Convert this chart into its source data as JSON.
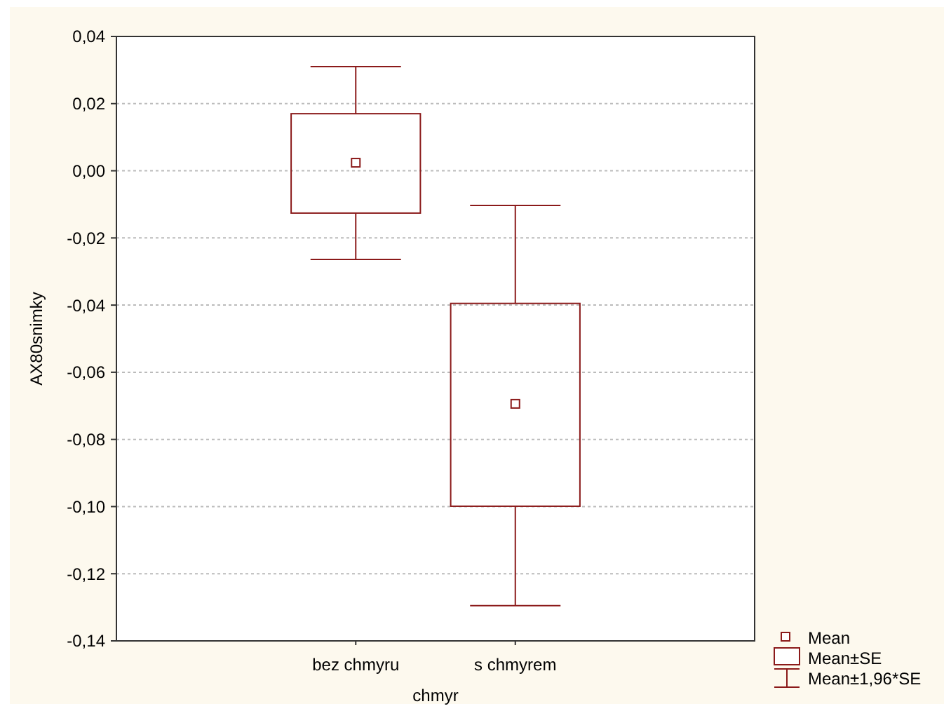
{
  "chart_data": {
    "type": "box",
    "xlabel": "chmyr",
    "ylabel": "AX80snimky",
    "categories": [
      "bez chmyru",
      "s chmyrem"
    ],
    "series": [
      {
        "color": "#8b1a1a",
        "boxes": [
          {
            "low": -0.0264,
            "q1": -0.0126,
            "median": 0.0024,
            "q3": 0.017,
            "high": 0.031
          },
          {
            "low": -0.1295,
            "q1": -0.0999,
            "median": -0.0694,
            "q3": -0.0395,
            "high": -0.0103
          }
        ]
      }
    ],
    "ylim": [
      -0.14,
      0.04
    ],
    "yticks": [
      {
        "value": -0.14,
        "label": "-0,14"
      },
      {
        "value": -0.12,
        "label": "-0,12"
      },
      {
        "value": -0.1,
        "label": "-0,10"
      },
      {
        "value": -0.08,
        "label": "-0,08"
      },
      {
        "value": -0.06,
        "label": "-0,06"
      },
      {
        "value": -0.04,
        "label": "-0,04"
      },
      {
        "value": -0.02,
        "label": "-0,02"
      },
      {
        "value": 0,
        "label": "0,00"
      },
      {
        "value": 0.02,
        "label": "0,02"
      },
      {
        "value": 0.04,
        "label": "0,04"
      }
    ],
    "grid": "y",
    "annotations": [
      "Mean",
      "Mean±SE",
      "Mean±1,96*SE"
    ]
  }
}
